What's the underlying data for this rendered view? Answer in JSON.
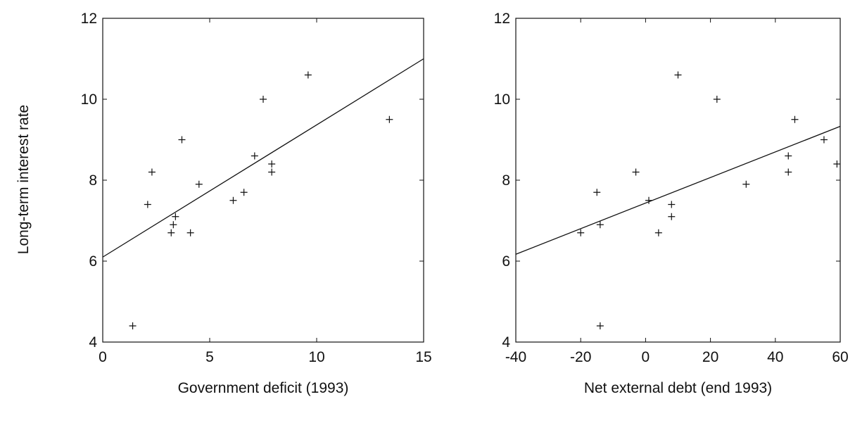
{
  "figure": {
    "ylabel": "Long-term interest rate"
  },
  "chart_data": [
    {
      "type": "scatter",
      "xlabel": "Government deficit (1993)",
      "ylabel": "Long-term interest rate",
      "xlim": [
        0,
        15
      ],
      "ylim": [
        4,
        12
      ],
      "xticks": [
        0,
        5,
        10,
        15
      ],
      "yticks": [
        4,
        6,
        8,
        10,
        12
      ],
      "grid": false,
      "points": [
        {
          "x": 1.4,
          "y": 4.4
        },
        {
          "x": 2.1,
          "y": 7.4
        },
        {
          "x": 2.3,
          "y": 8.2
        },
        {
          "x": 3.2,
          "y": 6.7
        },
        {
          "x": 3.3,
          "y": 6.9
        },
        {
          "x": 3.4,
          "y": 7.1
        },
        {
          "x": 3.7,
          "y": 9.0
        },
        {
          "x": 4.1,
          "y": 6.7
        },
        {
          "x": 4.5,
          "y": 7.9
        },
        {
          "x": 6.1,
          "y": 7.5
        },
        {
          "x": 6.6,
          "y": 7.7
        },
        {
          "x": 7.1,
          "y": 8.6
        },
        {
          "x": 7.5,
          "y": 10.0
        },
        {
          "x": 7.9,
          "y": 8.4
        },
        {
          "x": 7.9,
          "y": 8.2
        },
        {
          "x": 9.6,
          "y": 10.6
        },
        {
          "x": 13.4,
          "y": 9.5
        }
      ],
      "fit_line": {
        "x": [
          0,
          15
        ],
        "y": [
          6.1,
          11.0
        ]
      }
    },
    {
      "type": "scatter",
      "xlabel": "Net external debt (end 1993)",
      "ylabel": "",
      "xlim": [
        -40,
        60
      ],
      "ylim": [
        4,
        12
      ],
      "xticks": [
        -40,
        -20,
        0,
        20,
        40,
        60
      ],
      "yticks": [
        4,
        6,
        8,
        10,
        12
      ],
      "grid": false,
      "points": [
        {
          "x": -20,
          "y": 6.7
        },
        {
          "x": -15,
          "y": 7.7
        },
        {
          "x": -14,
          "y": 6.9
        },
        {
          "x": -14,
          "y": 4.4
        },
        {
          "x": -3,
          "y": 8.2
        },
        {
          "x": 1,
          "y": 7.5
        },
        {
          "x": 4,
          "y": 6.7
        },
        {
          "x": 8,
          "y": 7.4
        },
        {
          "x": 8,
          "y": 7.1
        },
        {
          "x": 10,
          "y": 10.6
        },
        {
          "x": 22,
          "y": 10.0
        },
        {
          "x": 31,
          "y": 7.9
        },
        {
          "x": 44,
          "y": 8.6
        },
        {
          "x": 44,
          "y": 8.2
        },
        {
          "x": 46,
          "y": 9.5
        },
        {
          "x": 55,
          "y": 9.0
        },
        {
          "x": 59,
          "y": 8.4
        }
      ],
      "fit_line": {
        "x": [
          -40,
          60
        ],
        "y": [
          6.17,
          9.33
        ]
      }
    }
  ]
}
